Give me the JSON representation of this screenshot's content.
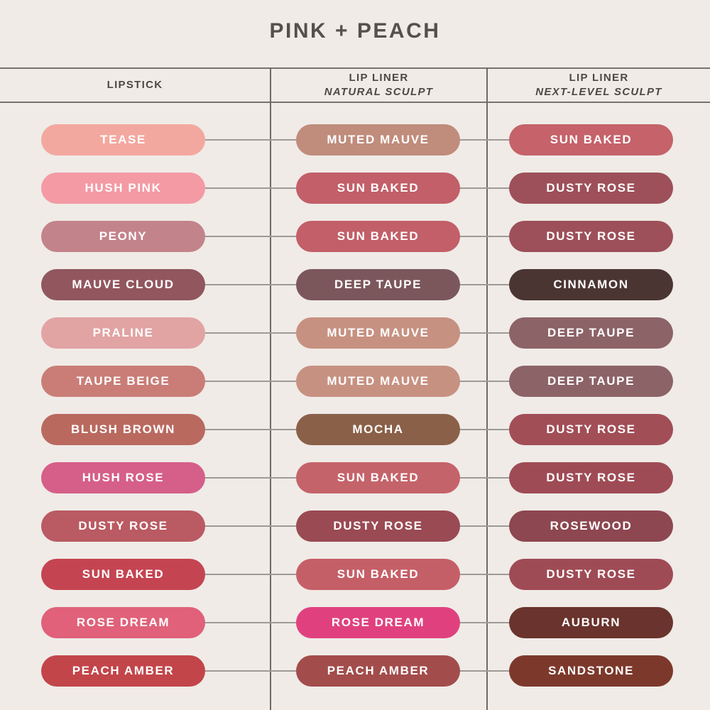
{
  "title": "PINK + PEACH",
  "header": {
    "columns": [
      {
        "line1": "LIPSTICK",
        "line2": ""
      },
      {
        "line1": "LIP LINER",
        "line2": "NATURAL SCULPT"
      },
      {
        "line1": "LIP LINER",
        "line2": "NEXT-LEVEL SCULPT"
      }
    ]
  },
  "colors": {
    "background": "#f0ebe7",
    "title_text": "#55504d",
    "header_text": "#4c4846",
    "grid_line": "#6f6966",
    "connector_line": "#9d9a97",
    "swatch_text": "#ffffff"
  },
  "chart_data": {
    "type": "table",
    "title": "PINK + PEACH",
    "columns": [
      "LIPSTICK",
      "LIP LINER NATURAL SCULPT",
      "LIP LINER NEXT-LEVEL SCULPT"
    ],
    "rows": [
      {
        "lipstick": {
          "name": "TEASE",
          "color": "#f3a89f"
        },
        "natural": {
          "name": "MUTED MAUVE",
          "color": "#c08c7c"
        },
        "next": {
          "name": "SUN BAKED",
          "color": "#c5626a"
        }
      },
      {
        "lipstick": {
          "name": "HUSH PINK",
          "color": "#f49aa4"
        },
        "natural": {
          "name": "SUN BAKED",
          "color": "#c25f68"
        },
        "next": {
          "name": "DUSTY ROSE",
          "color": "#9d5059"
        }
      },
      {
        "lipstick": {
          "name": "PEONY",
          "color": "#c3838b"
        },
        "natural": {
          "name": "SUN BAKED",
          "color": "#c25f68"
        },
        "next": {
          "name": "DUSTY ROSE",
          "color": "#9d5059"
        }
      },
      {
        "lipstick": {
          "name": "MAUVE CLOUD",
          "color": "#91565e"
        },
        "natural": {
          "name": "DEEP TAUPE",
          "color": "#7b575c"
        },
        "next": {
          "name": "CINNAMON",
          "color": "#4b3533"
        }
      },
      {
        "lipstick": {
          "name": "PRALINE",
          "color": "#e2a3a3"
        },
        "natural": {
          "name": "MUTED MAUVE",
          "color": "#c79181"
        },
        "next": {
          "name": "DEEP TAUPE",
          "color": "#8c6367"
        }
      },
      {
        "lipstick": {
          "name": "TAUPE BEIGE",
          "color": "#ca7d77"
        },
        "natural": {
          "name": "MUTED MAUVE",
          "color": "#c79181"
        },
        "next": {
          "name": "DEEP TAUPE",
          "color": "#8c6367"
        }
      },
      {
        "lipstick": {
          "name": "BLUSH BROWN",
          "color": "#ba695f"
        },
        "natural": {
          "name": "MOCHA",
          "color": "#8b6048"
        },
        "next": {
          "name": "DUSTY ROSE",
          "color": "#a24e57"
        }
      },
      {
        "lipstick": {
          "name": "HUSH ROSE",
          "color": "#d55f88"
        },
        "natural": {
          "name": "SUN BAKED",
          "color": "#c5636a"
        },
        "next": {
          "name": "DUSTY ROSE",
          "color": "#9f4b55"
        }
      },
      {
        "lipstick": {
          "name": "DUSTY ROSE",
          "color": "#ba5a62"
        },
        "natural": {
          "name": "DUSTY ROSE",
          "color": "#9a4a53"
        },
        "next": {
          "name": "ROSEWOOD",
          "color": "#8c4750"
        }
      },
      {
        "lipstick": {
          "name": "SUN BAKED",
          "color": "#c54451"
        },
        "natural": {
          "name": "SUN BAKED",
          "color": "#c55f67"
        },
        "next": {
          "name": "DUSTY ROSE",
          "color": "#9f4b55"
        }
      },
      {
        "lipstick": {
          "name": "ROSE DREAM",
          "color": "#e06179"
        },
        "natural": {
          "name": "ROSE DREAM",
          "color": "#e0417e"
        },
        "next": {
          "name": "AUBURN",
          "color": "#6a332d"
        }
      },
      {
        "lipstick": {
          "name": "PEACH AMBER",
          "color": "#c2454a"
        },
        "natural": {
          "name": "PEACH AMBER",
          "color": "#a34c4c"
        },
        "next": {
          "name": "SANDSTONE",
          "color": "#7c392b"
        }
      }
    ]
  }
}
